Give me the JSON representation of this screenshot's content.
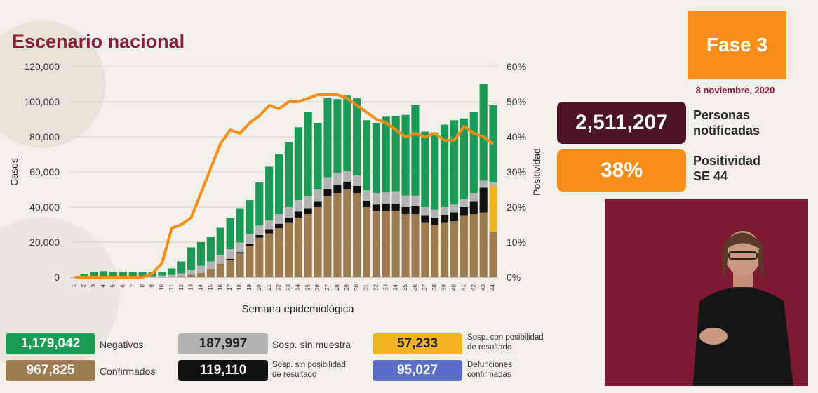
{
  "title": "Escenario nacional",
  "fase": "Fase 3",
  "date": "8 noviembre, 2020",
  "personas": {
    "value": "2,511,207",
    "label_line1": "Personas",
    "label_line2": "notificadas"
  },
  "positividad": {
    "value": "38%",
    "label_line1": "Positividad",
    "label_line2": "SE 44"
  },
  "legend": [
    {
      "value": "1,179,042",
      "label1": "Negativos",
      "label2": "",
      "color": "#1a9a55"
    },
    {
      "value": "187,997",
      "label1": "Sosp. sin muestra",
      "label2": "",
      "color": "#b3b3b3"
    },
    {
      "value": "57,233",
      "label1": "Sosp. con posibilidad",
      "label2": "de resultado",
      "color": "#f0b323"
    },
    {
      "value": "967,825",
      "label1": "Confirmados",
      "label2": "",
      "color": "#9c7b50"
    },
    {
      "value": "119,110",
      "label1": "Sosp. sin posibilidad",
      "label2": "de resultado",
      "color": "#111111"
    },
    {
      "value": "95,027",
      "label1": "Defunciones",
      "label2": "confirmadas",
      "color": "#5b6cc9"
    }
  ],
  "colors": {
    "orange": "#f88d1a",
    "maroon": "#8a1c35",
    "dark_maroon": "#4a1424"
  },
  "chart_data": {
    "type": "bar",
    "stacked": true,
    "xlabel": "Semana epidemiológica",
    "ylabel": "Casos",
    "y2label": "Positividad",
    "ylim": [
      0,
      120000
    ],
    "yticks": [
      "0",
      "20,000",
      "40,000",
      "60,000",
      "80,000",
      "100,000",
      "120,000"
    ],
    "y2lim": [
      0,
      60
    ],
    "y2ticks": [
      "0%",
      "10%",
      "20%",
      "30%",
      "40%",
      "50%",
      "60%"
    ],
    "categories": [
      "1",
      "2",
      "3",
      "4",
      "5",
      "6",
      "7",
      "8",
      "9",
      "10",
      "11",
      "12",
      "13",
      "14",
      "15",
      "16",
      "17",
      "18",
      "19",
      "20",
      "21",
      "22",
      "23",
      "24",
      "25",
      "26",
      "27",
      "28",
      "29",
      "30",
      "31",
      "32",
      "33",
      "34",
      "35",
      "36",
      "37",
      "38",
      "39",
      "40",
      "41",
      "42",
      "43",
      "44"
    ],
    "series": [
      {
        "name": "Confirmados",
        "color": "#9c7b50",
        "values": [
          0,
          0,
          0,
          0,
          0,
          0,
          0,
          0,
          0,
          100,
          300,
          700,
          1500,
          2500,
          4500,
          7500,
          10000,
          13500,
          18000,
          22500,
          25000,
          28000,
          31000,
          34000,
          36000,
          40000,
          46000,
          48000,
          50000,
          48000,
          40000,
          38000,
          38000,
          38000,
          36000,
          36000,
          31000,
          30000,
          31000,
          32000,
          35000,
          36000,
          37000,
          26000
        ]
      },
      {
        "name": "Sosp. sin posibilidad de resultado",
        "color": "#111111",
        "values": [
          0,
          0,
          0,
          0,
          0,
          0,
          0,
          0,
          0,
          0,
          0,
          0,
          0,
          0,
          0,
          200,
          500,
          800,
          1200,
          1500,
          2000,
          2500,
          3000,
          3500,
          3000,
          3000,
          4000,
          4500,
          4500,
          4000,
          3500,
          3500,
          4000,
          4000,
          4000,
          4500,
          4000,
          4000,
          4500,
          5000,
          5000,
          7000,
          14000,
          0
        ]
      },
      {
        "name": "Sosp. con posibilidad de resultado",
        "color": "#f0b323",
        "values": [
          0,
          0,
          0,
          0,
          0,
          0,
          0,
          0,
          0,
          0,
          0,
          0,
          0,
          0,
          0,
          0,
          0,
          0,
          0,
          0,
          0,
          0,
          0,
          0,
          0,
          0,
          0,
          0,
          0,
          0,
          0,
          0,
          0,
          0,
          0,
          0,
          0,
          0,
          0,
          0,
          0,
          0,
          0,
          26000
        ]
      },
      {
        "name": "Sosp. sin muestra",
        "color": "#b3b3b3",
        "values": [
          0,
          500,
          600,
          700,
          700,
          600,
          600,
          600,
          600,
          800,
          1000,
          1500,
          2500,
          4000,
          4500,
          5000,
          5500,
          5500,
          5500,
          5500,
          5500,
          5500,
          6000,
          6500,
          7000,
          7000,
          7000,
          7000,
          6000,
          6000,
          6000,
          6500,
          6500,
          7000,
          6500,
          6000,
          5000,
          4500,
          4500,
          4500,
          4500,
          5000,
          4000,
          2000
        ]
      },
      {
        "name": "Negativos",
        "color": "#1a9a55",
        "values": [
          300,
          1500,
          2400,
          2800,
          2300,
          2400,
          2400,
          2400,
          2400,
          2100,
          3700,
          6800,
          13000,
          13500,
          14000,
          15500,
          18000,
          19200,
          19300,
          24500,
          30500,
          34000,
          37000,
          41500,
          48000,
          38000,
          45000,
          42000,
          43000,
          44000,
          40000,
          40000,
          43000,
          43000,
          46000,
          51500,
          43000,
          44000,
          47000,
          48000,
          46000,
          46000,
          55000,
          44000
        ]
      }
    ],
    "line": {
      "name": "Positividad",
      "color": "#f88d1a",
      "values": [
        0,
        0,
        0,
        0,
        0,
        0,
        0,
        0,
        1,
        4,
        14,
        15,
        17,
        24,
        31,
        38,
        42,
        41,
        44,
        46,
        49,
        48,
        50,
        50,
        51,
        52,
        52,
        52,
        51,
        49,
        47,
        45,
        44,
        42,
        40,
        41,
        40,
        41,
        39,
        39,
        43,
        41,
        40,
        38
      ]
    }
  }
}
